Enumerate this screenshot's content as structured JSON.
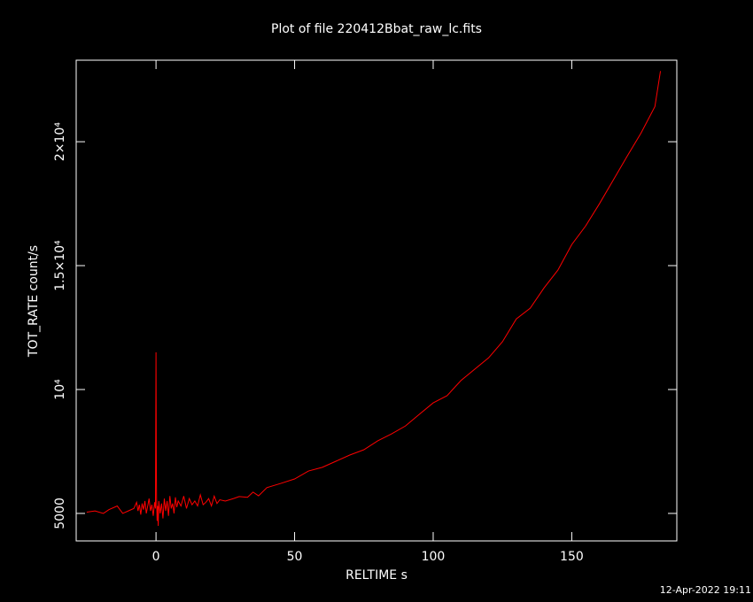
{
  "chart_data": {
    "type": "line",
    "title": "Plot of file 220412Bbat_raw_lc.fits",
    "x_label": "RELTIME  s",
    "y_label": "TOT_RATE  count/s",
    "footer": "12-Apr-2022 19:11",
    "series": [
      {
        "color": "#ff0000",
        "x": [
          -25,
          -22,
          -19,
          -17,
          -14,
          -12,
          -10,
          -8,
          -7,
          -6.5,
          -6,
          -5.5,
          -5,
          -4.5,
          -4,
          -3.5,
          -3,
          -2.5,
          -2,
          -1.5,
          -1,
          -0.5,
          -0.2,
          0,
          0.1,
          0.2,
          0.4,
          0.6,
          0.8,
          1,
          1.5,
          2,
          2.5,
          3,
          3.5,
          4,
          4.5,
          5,
          5.5,
          6,
          6.5,
          7,
          7.5,
          8,
          9,
          10,
          11,
          12,
          13,
          14,
          15,
          16,
          17,
          18,
          19,
          20,
          21,
          22,
          23,
          25,
          28,
          30,
          33,
          35,
          37,
          40,
          45,
          50,
          55,
          60,
          65,
          70,
          75,
          80,
          85,
          90,
          95,
          100,
          105,
          110,
          115,
          120,
          125,
          130,
          135,
          140,
          145,
          150,
          155,
          160,
          165,
          170,
          175,
          180,
          182
        ],
        "values": [
          5050,
          5100,
          5000,
          5150,
          5300,
          5000,
          5100,
          5200,
          5450,
          5100,
          5350,
          4950,
          5400,
          5150,
          5500,
          5000,
          5300,
          5600,
          5100,
          5350,
          4900,
          5450,
          5200,
          11500,
          7400,
          5600,
          4700,
          5300,
          4500,
          5500,
          5000,
          5400,
          4800,
          5600,
          5100,
          5500,
          4900,
          5700,
          5200,
          5400,
          5000,
          5650,
          5250,
          5500,
          5300,
          5700,
          5200,
          5600,
          5350,
          5500,
          5300,
          5750,
          5350,
          5450,
          5600,
          5300,
          5700,
          5400,
          5550,
          5500,
          5600,
          5680,
          5650,
          5860,
          5710,
          6040,
          6210,
          6390,
          6710,
          6860,
          7110,
          7360,
          7570,
          7930,
          8210,
          8530,
          9000,
          9460,
          9750,
          10360,
          10820,
          11280,
          11930,
          12850,
          13280,
          14100,
          14820,
          15850,
          16600,
          17500,
          18460,
          19420,
          20350,
          21420,
          22850
        ]
      }
    ],
    "xlim": [
      -28.8,
      187.9
    ],
    "ylim": [
      3890,
      23290
    ],
    "xticks": [
      0,
      50,
      100,
      150
    ],
    "yticks": [
      5000,
      {
        "value": 10000,
        "label": "10⁴"
      },
      {
        "value": 15000,
        "label": "1.5×10⁴"
      },
      {
        "value": 20000,
        "label": "2×10⁴"
      }
    ]
  }
}
